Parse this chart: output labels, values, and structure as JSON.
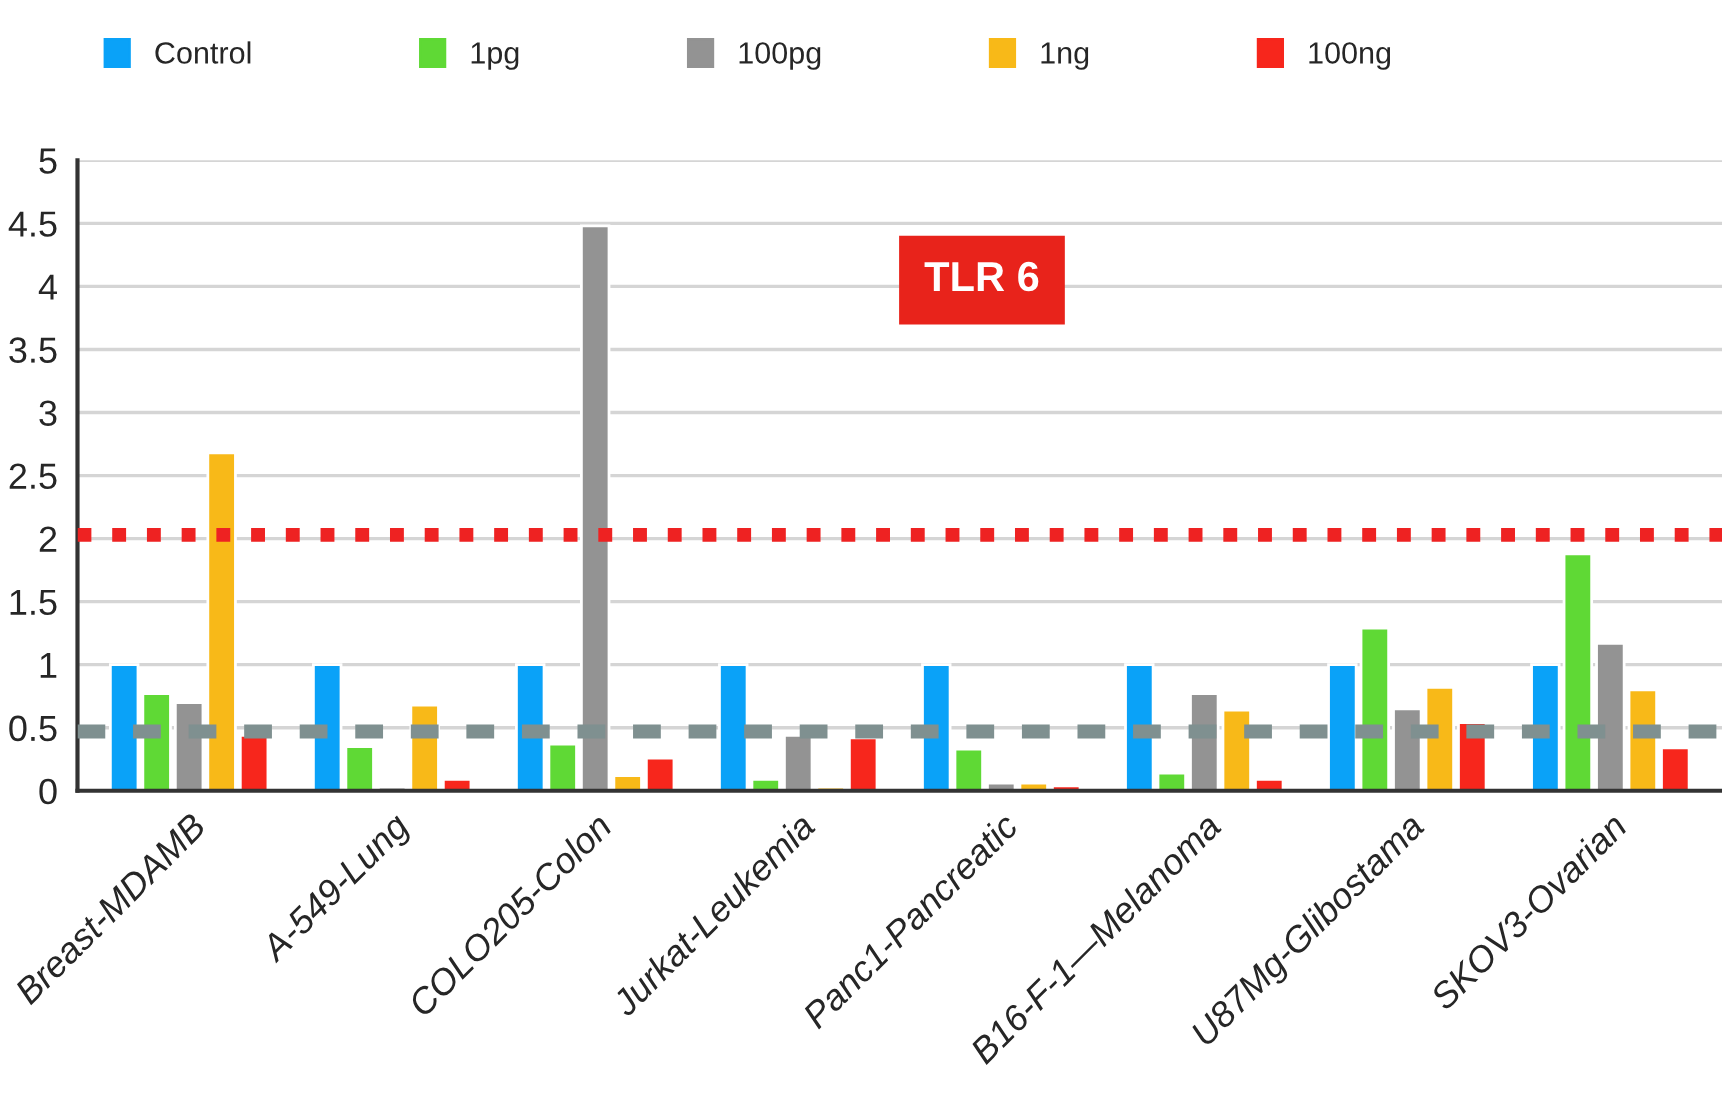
{
  "chart_data": {
    "type": "bar",
    "categories": [
      "Breast-MDAMB",
      "A-549-Lung",
      "COLO205-Colon",
      "Jurkat-Leukemia",
      "Panc1-Pancreatic",
      "B16-F-1—Melanoma",
      "U87Mg-Glibostama",
      "SKOV3-Ovarian"
    ],
    "series": [
      {
        "name": "Control",
        "color": "#0aa2f8",
        "values": [
          1,
          1,
          1,
          1,
          1,
          1,
          1,
          1
        ]
      },
      {
        "name": "1pg",
        "color": "#5fd935",
        "values": [
          0.77,
          0.35,
          0.37,
          0.09,
          0.33,
          0.14,
          1.29,
          1.88
        ]
      },
      {
        "name": "100pg",
        "color": "#939393",
        "values": [
          0.7,
          0.03,
          4.48,
          0.44,
          0.06,
          0.77,
          0.65,
          1.17
        ]
      },
      {
        "name": "1ng",
        "color": "#f8b918",
        "values": [
          2.68,
          0.68,
          0.12,
          0.03,
          0.06,
          0.64,
          0.82,
          0.8
        ]
      },
      {
        "name": "100ng",
        "color": "#f7261c",
        "values": [
          0.44,
          0.09,
          0.26,
          0.42,
          0.04,
          0.09,
          0.54,
          0.34
        ]
      }
    ],
    "ylim": [
      0,
      5
    ],
    "yticks": [
      0,
      0.5,
      1,
      1.5,
      2,
      2.5,
      3,
      3.5,
      4,
      4.5,
      5
    ],
    "grid": "y",
    "legend": "top left",
    "ref_lines": [
      {
        "axis": "y",
        "value": 2.03,
        "color": "#ee2222",
        "line_style": "dotted"
      },
      {
        "axis": "y",
        "value": 0.47,
        "color": "#7f9090",
        "line_style": "dashed"
      }
    ],
    "annotations": [
      "TLR 6"
    ]
  }
}
